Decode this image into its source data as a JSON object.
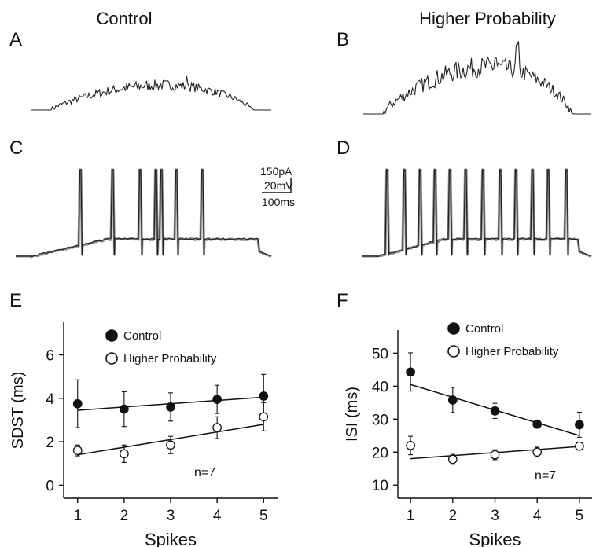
{
  "figure": {
    "col_titles": [
      "Control",
      "Higher Probability"
    ],
    "panel_labels": [
      "A",
      "B",
      "C",
      "D",
      "E",
      "F"
    ],
    "scale_bar": {
      "current": "150pA",
      "voltage": "20mV",
      "time": "100ms"
    }
  },
  "colors": {
    "trace_dark": "#222222",
    "trace_gray": "#8a8a8a",
    "axis": "#111111"
  },
  "chart_data": [
    {
      "panel": "E",
      "type": "scatter",
      "ylabel": "SDST (ms)",
      "xlabel": "Spikes",
      "xlim": [
        0.7,
        5.3
      ],
      "ylim": [
        -0.6,
        7.5
      ],
      "x_ticks": [
        1,
        2,
        3,
        4,
        5
      ],
      "y_ticks": [
        0,
        2,
        4,
        6
      ],
      "annotation": "n=7",
      "legend_position": "top-left",
      "series": [
        {
          "name": "Control",
          "marker": "filled-circle",
          "x": [
            1,
            2,
            3,
            4,
            5
          ],
          "y": [
            3.75,
            3.5,
            3.6,
            3.95,
            4.1
          ],
          "err": [
            1.1,
            0.8,
            0.65,
            0.65,
            1.0
          ],
          "fit": [
            [
              1,
              3.45
            ],
            [
              5,
              4.05
            ]
          ]
        },
        {
          "name": "Higher Probability",
          "marker": "open-circle",
          "x": [
            1,
            2,
            3,
            4,
            5
          ],
          "y": [
            1.6,
            1.45,
            1.85,
            2.65,
            3.15
          ],
          "err": [
            0.25,
            0.4,
            0.4,
            0.5,
            0.65
          ],
          "fit": [
            [
              1,
              1.4
            ],
            [
              5,
              2.8
            ]
          ]
        }
      ]
    },
    {
      "panel": "F",
      "type": "scatter",
      "ylabel": "ISI (ms)",
      "xlabel": "Spikes",
      "xlim": [
        0.7,
        5.3
      ],
      "ylim": [
        6,
        57
      ],
      "x_ticks": [
        1,
        2,
        3,
        4,
        5
      ],
      "y_ticks": [
        10,
        20,
        30,
        40,
        50
      ],
      "annotation": "n=7",
      "legend_position": "top-left",
      "series": [
        {
          "name": "Control",
          "marker": "filled-circle",
          "x": [
            1,
            2,
            3,
            4,
            5
          ],
          "y": [
            44.3,
            35.8,
            32.5,
            28.5,
            28.3
          ],
          "err": [
            5.8,
            3.8,
            2.3,
            1.2,
            3.8
          ],
          "fit": [
            [
              1,
              40.5
            ],
            [
              5,
              25.0
            ]
          ]
        },
        {
          "name": "Higher Probability",
          "marker": "open-circle",
          "x": [
            1,
            2,
            3,
            4,
            5
          ],
          "y": [
            22.0,
            17.8,
            19.2,
            20.0,
            21.8
          ],
          "err": [
            2.8,
            1.5,
            1.5,
            1.5,
            0.8
          ],
          "fit": [
            [
              1,
              18.0
            ],
            [
              5,
              21.7
            ]
          ]
        }
      ]
    }
  ]
}
